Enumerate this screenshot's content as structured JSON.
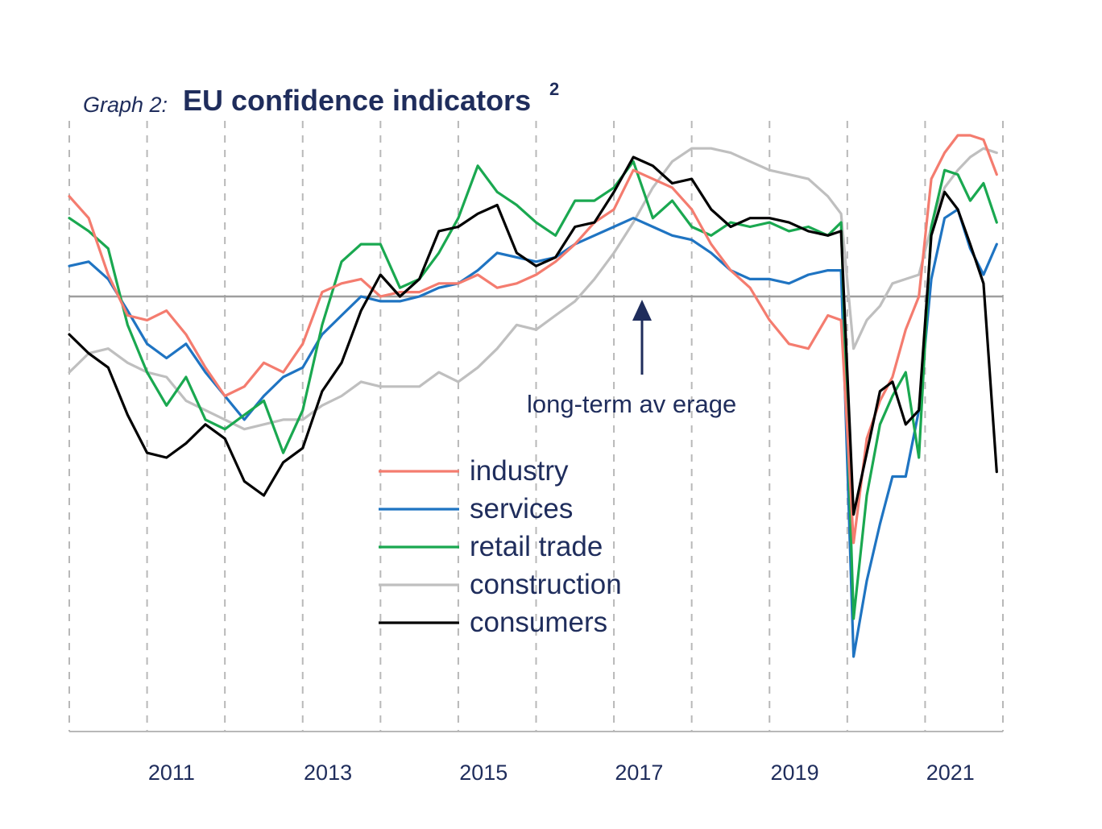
{
  "chart_data": {
    "type": "line",
    "title_prefix": "Graph 2:",
    "title": "EU confidence indicators",
    "title_superscript": "2",
    "xlabel": "",
    "ylabel": "",
    "x_ticks": [
      "2011",
      "2013",
      "2015",
      "2017",
      "2019",
      "2021"
    ],
    "x_range": [
      2010.0,
      2022.0
    ],
    "y_range_relative_to_average": [
      -7.0,
      3.0
    ],
    "reference_line": {
      "value": 0,
      "label": "long-term av erage"
    },
    "grid": "vertical dashed at year boundaries",
    "legend_position": "center",
    "series": [
      {
        "name": "industry",
        "color": "#f47c6f",
        "points": [
          [
            2010.0,
            2.3
          ],
          [
            2010.25,
            1.8
          ],
          [
            2010.5,
            0.5
          ],
          [
            2010.75,
            -0.4
          ],
          [
            2011.0,
            -0.5
          ],
          [
            2011.25,
            -0.3
          ],
          [
            2011.5,
            -0.8
          ],
          [
            2011.75,
            -1.5
          ],
          [
            2012.0,
            -2.1
          ],
          [
            2012.25,
            -1.9
          ],
          [
            2012.5,
            -1.4
          ],
          [
            2012.75,
            -1.6
          ],
          [
            2013.0,
            -1.0
          ],
          [
            2013.25,
            0.1
          ],
          [
            2013.5,
            0.3
          ],
          [
            2013.75,
            0.4
          ],
          [
            2014.0,
            0.0
          ],
          [
            2014.25,
            0.1
          ],
          [
            2014.5,
            0.1
          ],
          [
            2014.75,
            0.3
          ],
          [
            2015.0,
            0.3
          ],
          [
            2015.25,
            0.5
          ],
          [
            2015.5,
            0.2
          ],
          [
            2015.75,
            0.3
          ],
          [
            2016.0,
            0.5
          ],
          [
            2016.25,
            0.8
          ],
          [
            2016.5,
            1.2
          ],
          [
            2016.75,
            1.7
          ],
          [
            2017.0,
            2.0
          ],
          [
            2017.25,
            2.9
          ],
          [
            2017.5,
            2.7
          ],
          [
            2017.75,
            2.5
          ],
          [
            2018.0,
            2.0
          ],
          [
            2018.25,
            1.2
          ],
          [
            2018.5,
            0.6
          ],
          [
            2018.75,
            0.2
          ],
          [
            2019.0,
            -0.5
          ],
          [
            2019.25,
            -1.0
          ],
          [
            2019.5,
            -1.1
          ],
          [
            2019.75,
            -0.4
          ],
          [
            2019.92,
            -0.5
          ],
          [
            2020.08,
            -5.2
          ],
          [
            2020.25,
            -3.0
          ],
          [
            2020.42,
            -2.2
          ],
          [
            2020.58,
            -1.7
          ],
          [
            2020.75,
            -0.7
          ],
          [
            2020.92,
            0.0
          ],
          [
            2021.08,
            2.7
          ],
          [
            2021.25,
            3.3
          ],
          [
            2021.42,
            3.7
          ],
          [
            2021.58,
            3.7
          ],
          [
            2021.75,
            3.6
          ],
          [
            2021.92,
            2.8
          ]
        ]
      },
      {
        "name": "services",
        "color": "#1f74c2",
        "points": [
          [
            2010.0,
            0.7
          ],
          [
            2010.25,
            0.8
          ],
          [
            2010.5,
            0.4
          ],
          [
            2010.75,
            -0.3
          ],
          [
            2011.0,
            -1.0
          ],
          [
            2011.25,
            -1.3
          ],
          [
            2011.5,
            -1.0
          ],
          [
            2011.75,
            -1.6
          ],
          [
            2012.0,
            -2.1
          ],
          [
            2012.25,
            -2.6
          ],
          [
            2012.5,
            -2.1
          ],
          [
            2012.75,
            -1.7
          ],
          [
            2013.0,
            -1.5
          ],
          [
            2013.25,
            -0.8
          ],
          [
            2013.5,
            -0.4
          ],
          [
            2013.75,
            0.0
          ],
          [
            2014.0,
            -0.1
          ],
          [
            2014.25,
            -0.1
          ],
          [
            2014.5,
            0.0
          ],
          [
            2014.75,
            0.2
          ],
          [
            2015.0,
            0.3
          ],
          [
            2015.25,
            0.6
          ],
          [
            2015.5,
            1.0
          ],
          [
            2015.75,
            0.9
          ],
          [
            2016.0,
            0.8
          ],
          [
            2016.25,
            0.9
          ],
          [
            2016.5,
            1.2
          ],
          [
            2016.75,
            1.4
          ],
          [
            2017.0,
            1.6
          ],
          [
            2017.25,
            1.8
          ],
          [
            2017.5,
            1.6
          ],
          [
            2017.75,
            1.4
          ],
          [
            2018.0,
            1.3
          ],
          [
            2018.25,
            1.0
          ],
          [
            2018.5,
            0.6
          ],
          [
            2018.75,
            0.4
          ],
          [
            2019.0,
            0.4
          ],
          [
            2019.25,
            0.3
          ],
          [
            2019.5,
            0.5
          ],
          [
            2019.75,
            0.6
          ],
          [
            2019.92,
            0.6
          ],
          [
            2020.08,
            -7.6
          ],
          [
            2020.25,
            -6.0
          ],
          [
            2020.42,
            -4.8
          ],
          [
            2020.58,
            -3.8
          ],
          [
            2020.75,
            -3.8
          ],
          [
            2020.92,
            -2.4
          ],
          [
            2021.08,
            0.4
          ],
          [
            2021.25,
            1.8
          ],
          [
            2021.42,
            2.0
          ],
          [
            2021.58,
            1.1
          ],
          [
            2021.75,
            0.5
          ],
          [
            2021.92,
            1.2
          ]
        ]
      },
      {
        "name": "retail trade",
        "color": "#1aa850",
        "points": [
          [
            2010.0,
            1.8
          ],
          [
            2010.25,
            1.5
          ],
          [
            2010.5,
            1.1
          ],
          [
            2010.75,
            -0.6
          ],
          [
            2011.0,
            -1.6
          ],
          [
            2011.25,
            -2.3
          ],
          [
            2011.5,
            -1.7
          ],
          [
            2011.75,
            -2.6
          ],
          [
            2012.0,
            -2.8
          ],
          [
            2012.25,
            -2.5
          ],
          [
            2012.5,
            -2.2
          ],
          [
            2012.75,
            -3.3
          ],
          [
            2013.0,
            -2.4
          ],
          [
            2013.25,
            -0.6
          ],
          [
            2013.5,
            0.8
          ],
          [
            2013.75,
            1.2
          ],
          [
            2014.0,
            1.2
          ],
          [
            2014.25,
            0.2
          ],
          [
            2014.5,
            0.4
          ],
          [
            2014.75,
            1.0
          ],
          [
            2015.0,
            1.8
          ],
          [
            2015.25,
            3.0
          ],
          [
            2015.5,
            2.4
          ],
          [
            2015.75,
            2.1
          ],
          [
            2016.0,
            1.7
          ],
          [
            2016.25,
            1.4
          ],
          [
            2016.5,
            2.2
          ],
          [
            2016.75,
            2.2
          ],
          [
            2017.0,
            2.5
          ],
          [
            2017.25,
            3.1
          ],
          [
            2017.5,
            1.8
          ],
          [
            2017.75,
            2.2
          ],
          [
            2018.0,
            1.6
          ],
          [
            2018.25,
            1.4
          ],
          [
            2018.5,
            1.7
          ],
          [
            2018.75,
            1.6
          ],
          [
            2019.0,
            1.7
          ],
          [
            2019.25,
            1.5
          ],
          [
            2019.5,
            1.6
          ],
          [
            2019.75,
            1.4
          ],
          [
            2019.92,
            1.7
          ],
          [
            2020.08,
            -6.8
          ],
          [
            2020.25,
            -4.2
          ],
          [
            2020.42,
            -2.7
          ],
          [
            2020.58,
            -2.1
          ],
          [
            2020.75,
            -1.6
          ],
          [
            2020.92,
            -3.4
          ],
          [
            2021.08,
            1.6
          ],
          [
            2021.25,
            2.9
          ],
          [
            2021.42,
            2.8
          ],
          [
            2021.58,
            2.2
          ],
          [
            2021.75,
            2.6
          ],
          [
            2021.92,
            1.7
          ]
        ]
      },
      {
        "name": "construction",
        "color": "#bfbfbf",
        "points": [
          [
            2010.0,
            -1.6
          ],
          [
            2010.25,
            -1.2
          ],
          [
            2010.5,
            -1.1
          ],
          [
            2010.75,
            -1.4
          ],
          [
            2011.0,
            -1.6
          ],
          [
            2011.25,
            -1.7
          ],
          [
            2011.5,
            -2.2
          ],
          [
            2011.75,
            -2.4
          ],
          [
            2012.0,
            -2.6
          ],
          [
            2012.25,
            -2.8
          ],
          [
            2012.5,
            -2.7
          ],
          [
            2012.75,
            -2.6
          ],
          [
            2013.0,
            -2.6
          ],
          [
            2013.25,
            -2.3
          ],
          [
            2013.5,
            -2.1
          ],
          [
            2013.75,
            -1.8
          ],
          [
            2014.0,
            -1.9
          ],
          [
            2014.25,
            -1.9
          ],
          [
            2014.5,
            -1.9
          ],
          [
            2014.75,
            -1.6
          ],
          [
            2015.0,
            -1.8
          ],
          [
            2015.25,
            -1.5
          ],
          [
            2015.5,
            -1.1
          ],
          [
            2015.75,
            -0.6
          ],
          [
            2016.0,
            -0.7
          ],
          [
            2016.25,
            -0.4
          ],
          [
            2016.5,
            -0.1
          ],
          [
            2016.75,
            0.4
          ],
          [
            2017.0,
            1.0
          ],
          [
            2017.25,
            1.7
          ],
          [
            2017.5,
            2.5
          ],
          [
            2017.75,
            3.1
          ],
          [
            2018.0,
            3.4
          ],
          [
            2018.25,
            3.4
          ],
          [
            2018.5,
            3.3
          ],
          [
            2018.75,
            3.1
          ],
          [
            2019.0,
            2.9
          ],
          [
            2019.25,
            2.8
          ],
          [
            2019.5,
            2.7
          ],
          [
            2019.75,
            2.3
          ],
          [
            2019.92,
            1.9
          ],
          [
            2020.08,
            -1.1
          ],
          [
            2020.25,
            -0.5
          ],
          [
            2020.42,
            -0.2
          ],
          [
            2020.58,
            0.3
          ],
          [
            2020.75,
            0.4
          ],
          [
            2020.92,
            0.5
          ],
          [
            2021.08,
            1.6
          ],
          [
            2021.25,
            2.5
          ],
          [
            2021.42,
            2.9
          ],
          [
            2021.58,
            3.2
          ],
          [
            2021.75,
            3.4
          ],
          [
            2021.92,
            3.3
          ]
        ]
      },
      {
        "name": "consumers",
        "color": "#000000",
        "points": [
          [
            2010.0,
            -0.8
          ],
          [
            2010.25,
            -1.2
          ],
          [
            2010.5,
            -1.5
          ],
          [
            2010.75,
            -2.5
          ],
          [
            2011.0,
            -3.3
          ],
          [
            2011.25,
            -3.4
          ],
          [
            2011.5,
            -3.1
          ],
          [
            2011.75,
            -2.7
          ],
          [
            2012.0,
            -3.0
          ],
          [
            2012.25,
            -3.9
          ],
          [
            2012.5,
            -4.2
          ],
          [
            2012.75,
            -3.5
          ],
          [
            2013.0,
            -3.2
          ],
          [
            2013.25,
            -2.0
          ],
          [
            2013.5,
            -1.4
          ],
          [
            2013.75,
            -0.3
          ],
          [
            2014.0,
            0.5
          ],
          [
            2014.25,
            0.0
          ],
          [
            2014.5,
            0.4
          ],
          [
            2014.75,
            1.5
          ],
          [
            2015.0,
            1.6
          ],
          [
            2015.25,
            1.9
          ],
          [
            2015.5,
            2.1
          ],
          [
            2015.75,
            1.0
          ],
          [
            2016.0,
            0.7
          ],
          [
            2016.25,
            0.9
          ],
          [
            2016.5,
            1.6
          ],
          [
            2016.75,
            1.7
          ],
          [
            2017.0,
            2.4
          ],
          [
            2017.25,
            3.2
          ],
          [
            2017.5,
            3.0
          ],
          [
            2017.75,
            2.6
          ],
          [
            2018.0,
            2.7
          ],
          [
            2018.25,
            2.0
          ],
          [
            2018.5,
            1.6
          ],
          [
            2018.75,
            1.8
          ],
          [
            2019.0,
            1.8
          ],
          [
            2019.25,
            1.7
          ],
          [
            2019.5,
            1.5
          ],
          [
            2019.75,
            1.4
          ],
          [
            2019.92,
            1.5
          ],
          [
            2020.08,
            -4.6
          ],
          [
            2020.25,
            -3.3
          ],
          [
            2020.42,
            -2.0
          ],
          [
            2020.58,
            -1.8
          ],
          [
            2020.75,
            -2.7
          ],
          [
            2020.92,
            -2.4
          ],
          [
            2021.08,
            1.4
          ],
          [
            2021.25,
            2.4
          ],
          [
            2021.42,
            2.0
          ],
          [
            2021.58,
            1.2
          ],
          [
            2021.75,
            0.3
          ],
          [
            2021.92,
            -3.7
          ]
        ]
      }
    ]
  }
}
